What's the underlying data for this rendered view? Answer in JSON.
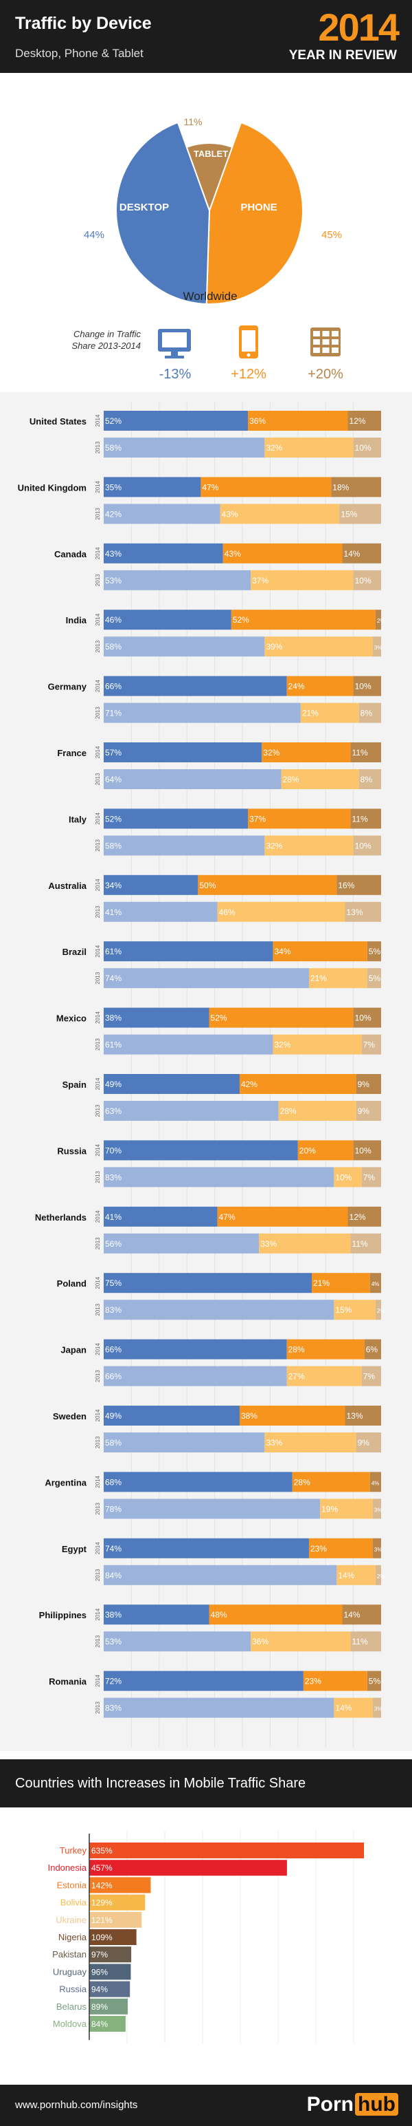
{
  "header": {
    "title": "Traffic by Device",
    "subtitle": "Desktop, Phone & Tablet",
    "year": "2014",
    "year_in_review": "YEAR IN REVIEW"
  },
  "colors": {
    "desktop": "#4f7bbe",
    "desktop_light": "#9cb3dc",
    "phone": "#f7941d",
    "phone_light": "#fdc56b",
    "tablet": "#b8864b",
    "tablet_light": "#d8b991",
    "dark": "#1c1c1c"
  },
  "worldwide": {
    "label": "Worldwide",
    "slices": [
      {
        "name": "DESKTOP",
        "value": 44,
        "label": "44%"
      },
      {
        "name": "PHONE",
        "value": 45,
        "label": "45%"
      },
      {
        "name": "TABLET",
        "value": 11,
        "label": "11%"
      }
    ]
  },
  "change": {
    "label_line1": "Change in Traffic",
    "label_line2": "Share 2013-2014",
    "items": [
      {
        "device": "desktop",
        "icon": "desktop-icon",
        "value": "-13%"
      },
      {
        "device": "phone",
        "icon": "phone-icon",
        "value": "+12%"
      },
      {
        "device": "tablet",
        "icon": "tablet-icon",
        "value": "+20%"
      }
    ]
  },
  "chart_data": [
    {
      "type": "bar",
      "stacked": true,
      "orientation": "horizontal",
      "year_labels": [
        "2014",
        "2013"
      ],
      "series_names": [
        "Desktop",
        "Phone",
        "Tablet"
      ],
      "countries": [
        {
          "name": "United States",
          "y2014": [
            52,
            36,
            12
          ],
          "y2013": [
            58,
            32,
            10
          ]
        },
        {
          "name": "United Kingdom",
          "y2014": [
            35,
            47,
            18
          ],
          "y2013": [
            42,
            43,
            15
          ]
        },
        {
          "name": "Canada",
          "y2014": [
            43,
            43,
            14
          ],
          "y2013": [
            53,
            37,
            10
          ]
        },
        {
          "name": "India",
          "y2014": [
            46,
            52,
            2
          ],
          "y2013": [
            58,
            39,
            3
          ]
        },
        {
          "name": "Germany",
          "y2014": [
            66,
            24,
            10
          ],
          "y2013": [
            71,
            21,
            8
          ]
        },
        {
          "name": "France",
          "y2014": [
            57,
            32,
            11
          ],
          "y2013": [
            64,
            28,
            8
          ]
        },
        {
          "name": "Italy",
          "y2014": [
            52,
            37,
            11
          ],
          "y2013": [
            58,
            32,
            10
          ]
        },
        {
          "name": "Australia",
          "y2014": [
            34,
            50,
            16
          ],
          "y2013": [
            41,
            46,
            13
          ]
        },
        {
          "name": "Brazil",
          "y2014": [
            61,
            34,
            5
          ],
          "y2013": [
            74,
            21,
            5
          ]
        },
        {
          "name": "Mexico",
          "y2014": [
            38,
            52,
            10
          ],
          "y2013": [
            61,
            32,
            7
          ]
        },
        {
          "name": "Spain",
          "y2014": [
            49,
            42,
            9
          ],
          "y2013": [
            63,
            28,
            9
          ]
        },
        {
          "name": "Russia",
          "y2014": [
            70,
            20,
            10
          ],
          "y2013": [
            83,
            10,
            7
          ]
        },
        {
          "name": "Netherlands",
          "y2014": [
            41,
            47,
            12
          ],
          "y2013": [
            56,
            33,
            11
          ]
        },
        {
          "name": "Poland",
          "y2014": [
            75,
            21,
            4
          ],
          "y2013": [
            83,
            15,
            2
          ]
        },
        {
          "name": "Japan",
          "y2014": [
            66,
            28,
            6
          ],
          "y2013": [
            66,
            27,
            7
          ]
        },
        {
          "name": "Sweden",
          "y2014": [
            49,
            38,
            13
          ],
          "y2013": [
            58,
            33,
            9
          ]
        },
        {
          "name": "Argentina",
          "y2014": [
            68,
            28,
            4
          ],
          "y2013": [
            78,
            19,
            3
          ]
        },
        {
          "name": "Egypt",
          "y2014": [
            74,
            23,
            3
          ],
          "y2013": [
            84,
            14,
            2
          ]
        },
        {
          "name": "Philippines",
          "y2014": [
            38,
            48,
            14
          ],
          "y2013": [
            53,
            36,
            11
          ]
        },
        {
          "name": "Romania",
          "y2014": [
            72,
            23,
            5
          ],
          "y2013": [
            83,
            14,
            3
          ]
        }
      ]
    },
    {
      "type": "bar",
      "orientation": "horizontal",
      "title": "Countries with Increases in Mobile Traffic Share",
      "categories": [
        "Turkey",
        "Indonesia",
        "Estonia",
        "Bolivia",
        "Ukraine",
        "Nigeria",
        "Pakistan",
        "Uruguay",
        "Russia",
        "Belarus",
        "Moldova"
      ],
      "values": [
        635,
        457,
        142,
        129,
        121,
        109,
        97,
        96,
        94,
        89,
        84
      ],
      "labels": [
        "635%",
        "457%",
        "142%",
        "129%",
        "121%",
        "109%",
        "97%",
        "96%",
        "94%",
        "89%",
        "84%"
      ],
      "colors": [
        "#ef4e23",
        "#e5202b",
        "#f47b20",
        "#f7b84a",
        "#f2c88f",
        "#7a4b2a",
        "#6a5a4a",
        "#50657a",
        "#5b6e8c",
        "#7a9e83",
        "#86b27e"
      ]
    }
  ],
  "section2": {
    "title": "Countries with Increases in Mobile Traffic Share"
  },
  "footer": {
    "url": "www.pornhub.com/insights",
    "logo_porn": "Porn",
    "logo_hub": "hub"
  }
}
